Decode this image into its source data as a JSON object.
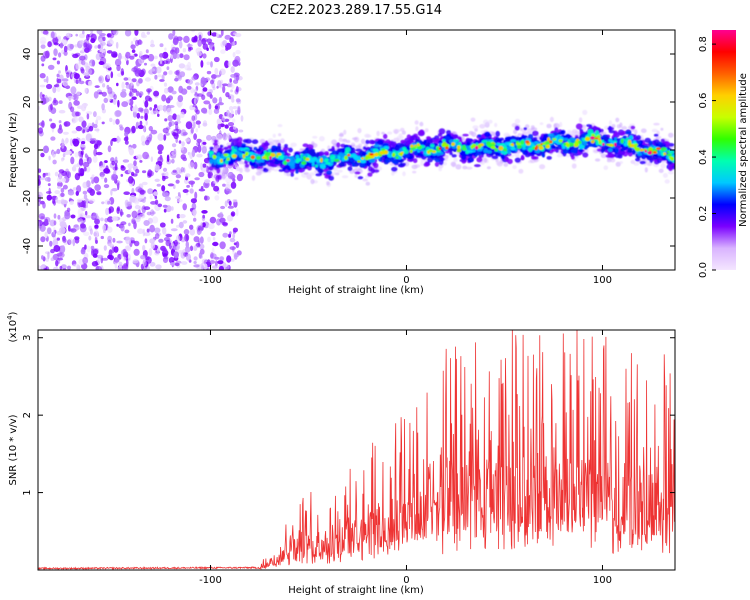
{
  "title": "C2E2.2023.289.17.55.G14",
  "chart_data": [
    {
      "type": "heatmap",
      "name": "spectrogram",
      "xlabel": "Height of straight line (km)",
      "ylabel": "Frequency (Hz)",
      "xlim": [
        -188,
        137
      ],
      "ylim": [
        -50,
        50
      ],
      "xticks": [
        -100,
        0,
        100
      ],
      "yticks": [
        -40,
        -20,
        0,
        20,
        40
      ],
      "colorbar": {
        "label": "Normalized spectral amplitude",
        "range": [
          0.0,
          0.85
        ],
        "ticks": [
          "0.0",
          "0.2",
          "0.4",
          "0.6",
          "0.8"
        ],
        "colors": [
          "#f4e6ff",
          "#d9b3ff",
          "#7a00ff",
          "#0000ff",
          "#00c8ff",
          "#00ffb0",
          "#30ff00",
          "#c8ff00",
          "#ffd000",
          "#ff6000",
          "#ff0000",
          "#ff0090"
        ]
      },
      "noise_region_km": [
        -188,
        -85
      ],
      "trace_region_km": [
        -100,
        137
      ],
      "trace_center_hz": [
        {
          "x": -100,
          "y": -3
        },
        {
          "x": -80,
          "y": -2
        },
        {
          "x": -60,
          "y": -4
        },
        {
          "x": -45,
          "y": -5
        },
        {
          "x": -30,
          "y": -3
        },
        {
          "x": -15,
          "y": -2
        },
        {
          "x": 0,
          "y": 0
        },
        {
          "x": 20,
          "y": 1
        },
        {
          "x": 40,
          "y": 1
        },
        {
          "x": 60,
          "y": 2
        },
        {
          "x": 80,
          "y": 3
        },
        {
          "x": 100,
          "y": 4
        },
        {
          "x": 120,
          "y": 1
        },
        {
          "x": 137,
          "y": -3
        }
      ]
    },
    {
      "type": "line",
      "name": "snr",
      "xlabel": "Height of straight line (km)",
      "ylabel": "SNR (10 * v/v)",
      "scale_label": "(x10",
      "scale_exp": "4",
      "scale_close": ")",
      "xlim": [
        -188,
        137
      ],
      "ylim": [
        0,
        3.1
      ],
      "xticks": [
        -100,
        0,
        100
      ],
      "yticks": [
        1,
        2,
        3
      ],
      "color": "#ee3333",
      "envelope": [
        {
          "x": -188,
          "y": 0.02
        },
        {
          "x": -75,
          "y": 0.03
        },
        {
          "x": -68,
          "y": 0.15
        },
        {
          "x": -60,
          "y": 0.4
        },
        {
          "x": -40,
          "y": 0.5
        },
        {
          "x": -20,
          "y": 0.7
        },
        {
          "x": 0,
          "y": 1.0
        },
        {
          "x": 20,
          "y": 1.3
        },
        {
          "x": 40,
          "y": 1.4
        },
        {
          "x": 60,
          "y": 1.4
        },
        {
          "x": 80,
          "y": 1.4
        },
        {
          "x": 100,
          "y": 1.35
        },
        {
          "x": 120,
          "y": 1.3
        },
        {
          "x": 137,
          "y": 1.25
        }
      ],
      "peak": {
        "x": 87,
        "y": 3.1
      }
    }
  ]
}
